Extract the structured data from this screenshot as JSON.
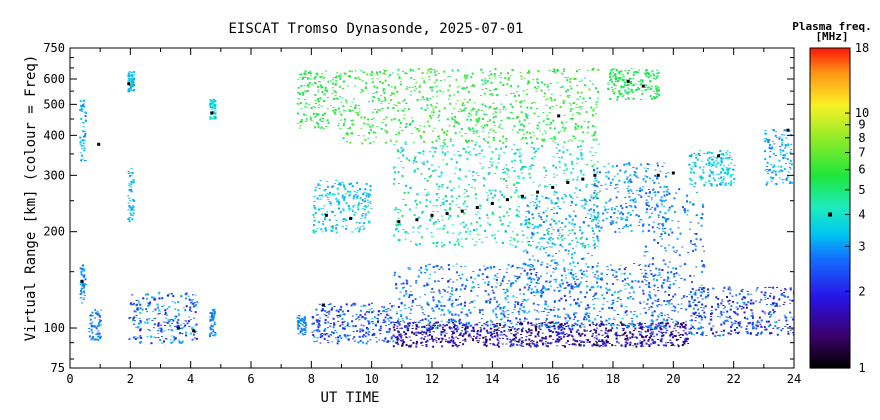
{
  "chart_data": {
    "type": "scatter",
    "title": "EISCAT Tromso Dynasonde, 2025-07-01",
    "xlabel": "UT TIME",
    "ylabel": "Virtual Range [km] (colour = Freq)",
    "xlim": [
      0,
      24
    ],
    "ylim": [
      75,
      750
    ],
    "y_scale": "log",
    "x_ticks": [
      0,
      2,
      4,
      6,
      8,
      10,
      12,
      14,
      16,
      18,
      20,
      22,
      24
    ],
    "y_ticks": [
      75,
      100,
      200,
      300,
      400,
      500,
      600,
      750
    ],
    "grid": false,
    "colorbar": {
      "label_line1": "Plasma freq.",
      "label_line2": "[MHz]",
      "scale": "log",
      "range": [
        1,
        18
      ],
      "ticks": [
        1,
        2,
        3,
        4,
        5,
        6,
        7,
        8,
        9,
        10,
        18
      ],
      "marker_at": 4
    },
    "echo_regions": [
      {
        "x": [
          0.3,
          0.5
        ],
        "y": [
          120,
          160
        ],
        "freq": [
          2.6,
          3.3
        ]
      },
      {
        "x": [
          0.3,
          0.5
        ],
        "y": [
          330,
          520
        ],
        "freq": [
          2.8,
          3.6
        ]
      },
      {
        "x": [
          0.6,
          1.0
        ],
        "y": [
          92,
          115
        ],
        "freq": [
          2.4,
          3.2
        ]
      },
      {
        "x": [
          1.9,
          2.1
        ],
        "y": [
          215,
          320
        ],
        "freq": [
          3.0,
          3.5
        ]
      },
      {
        "x": [
          1.9,
          2.1
        ],
        "y": [
          550,
          640
        ],
        "freq": [
          3.0,
          3.6
        ]
      },
      {
        "x": [
          1.9,
          4.2
        ],
        "y": [
          90,
          130
        ],
        "freq": [
          1.8,
          3.8
        ]
      },
      {
        "x": [
          4.6,
          4.8
        ],
        "y": [
          95,
          115
        ],
        "freq": [
          2.6,
          3.2
        ]
      },
      {
        "x": [
          4.6,
          4.8
        ],
        "y": [
          450,
          520
        ],
        "freq": [
          3.0,
          4.2
        ]
      },
      {
        "x": [
          7.5,
          7.8
        ],
        "y": [
          95,
          110
        ],
        "freq": [
          2.6,
          3.0
        ]
      },
      {
        "x": [
          7.5,
          9.0
        ],
        "y": [
          420,
          640
        ],
        "freq": [
          5.0,
          6.5
        ]
      },
      {
        "x": [
          8.0,
          10.7
        ],
        "y": [
          90,
          120
        ],
        "freq": [
          1.8,
          3.2
        ]
      },
      {
        "x": [
          8.0,
          10.0
        ],
        "y": [
          200,
          290
        ],
        "freq": [
          3.0,
          4.0
        ]
      },
      {
        "x": [
          9.0,
          17.5
        ],
        "y": [
          380,
          650
        ],
        "freq": [
          4.8,
          7.0
        ]
      },
      {
        "x": [
          10.7,
          17.5
        ],
        "y": [
          180,
          380
        ],
        "freq": [
          3.2,
          5.5
        ]
      },
      {
        "x": [
          10.7,
          20.5
        ],
        "y": [
          88,
          105
        ],
        "freq": [
          1.1,
          2.4
        ]
      },
      {
        "x": [
          10.7,
          20.0
        ],
        "y": [
          100,
          160
        ],
        "freq": [
          2.0,
          3.6
        ]
      },
      {
        "x": [
          15.0,
          17.5
        ],
        "y": [
          130,
          260
        ],
        "freq": [
          2.6,
          3.6
        ]
      },
      {
        "x": [
          17.3,
          19.8
        ],
        "y": [
          200,
          330
        ],
        "freq": [
          2.4,
          3.6
        ]
      },
      {
        "x": [
          17.8,
          19.5
        ],
        "y": [
          520,
          650
        ],
        "freq": [
          4.8,
          6.2
        ]
      },
      {
        "x": [
          19.0,
          21.0
        ],
        "y": [
          100,
          280
        ],
        "freq": [
          2.2,
          3.4
        ]
      },
      {
        "x": [
          20.5,
          24.0
        ],
        "y": [
          95,
          135
        ],
        "freq": [
          1.6,
          3.2
        ]
      },
      {
        "x": [
          20.5,
          22.0
        ],
        "y": [
          280,
          360
        ],
        "freq": [
          3.0,
          4.0
        ]
      },
      {
        "x": [
          23.0,
          23.9
        ],
        "y": [
          280,
          420
        ],
        "freq": [
          2.8,
          3.6
        ]
      }
    ],
    "marker_points": [
      {
        "x": 0.4,
        "y": 140
      },
      {
        "x": 0.95,
        "y": 375
      },
      {
        "x": 1.95,
        "y": 580
      },
      {
        "x": 3.6,
        "y": 100
      },
      {
        "x": 4.1,
        "y": 98
      },
      {
        "x": 4.7,
        "y": 470
      },
      {
        "x": 8.4,
        "y": 118
      },
      {
        "x": 8.5,
        "y": 225
      },
      {
        "x": 9.3,
        "y": 220
      },
      {
        "x": 10.9,
        "y": 215
      },
      {
        "x": 11.5,
        "y": 218
      },
      {
        "x": 12.0,
        "y": 225
      },
      {
        "x": 12.5,
        "y": 228
      },
      {
        "x": 13.0,
        "y": 232
      },
      {
        "x": 13.5,
        "y": 238
      },
      {
        "x": 14.0,
        "y": 245
      },
      {
        "x": 14.5,
        "y": 252
      },
      {
        "x": 15.0,
        "y": 258
      },
      {
        "x": 15.5,
        "y": 266
      },
      {
        "x": 16.0,
        "y": 275
      },
      {
        "x": 16.5,
        "y": 285
      },
      {
        "x": 17.0,
        "y": 292
      },
      {
        "x": 17.4,
        "y": 300
      },
      {
        "x": 16.2,
        "y": 460
      },
      {
        "x": 18.5,
        "y": 590
      },
      {
        "x": 19.0,
        "y": 570
      },
      {
        "x": 19.5,
        "y": 300
      },
      {
        "x": 20.0,
        "y": 305
      },
      {
        "x": 21.5,
        "y": 345
      },
      {
        "x": 23.8,
        "y": 415
      }
    ]
  }
}
